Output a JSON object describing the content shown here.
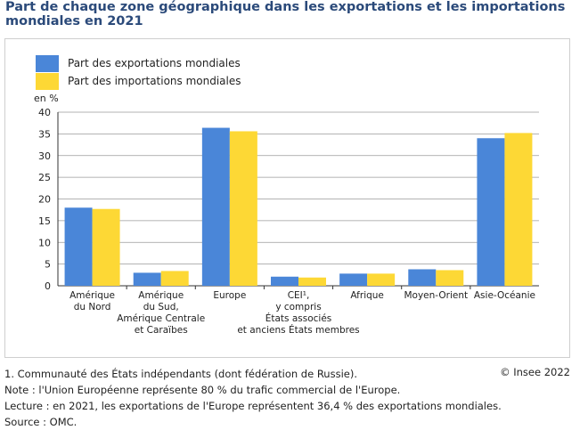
{
  "title": "Part de chaque zone géographique dans les exportations et les importations mondiales en 2021",
  "legend": [
    {
      "label": "Part des exportations mondiales",
      "color": "#4a86d8"
    },
    {
      "label": "Part des importations mondiales",
      "color": "#fdd835"
    }
  ],
  "unit_label": "en %",
  "chart_data": {
    "type": "bar",
    "categories": [
      [
        "Amérique",
        "du Nord"
      ],
      [
        "Amérique",
        "du Sud,",
        "Amérique Centrale",
        "et Caraïbes"
      ],
      [
        "Europe"
      ],
      [
        "CEI¹,",
        "y compris",
        "États associés",
        "et anciens États membres"
      ],
      [
        "Afrique"
      ],
      [
        "Moyen-Orient"
      ],
      [
        "Asie-Océanie"
      ]
    ],
    "series": [
      {
        "name": "Part des exportations mondiales",
        "color": "#4a86d8",
        "values": [
          18.0,
          3.0,
          36.4,
          2.1,
          2.8,
          3.8,
          34.0
        ]
      },
      {
        "name": "Part des importations mondiales",
        "color": "#fdd835",
        "values": [
          17.7,
          3.4,
          35.6,
          1.9,
          2.8,
          3.6,
          35.2
        ]
      }
    ],
    "ylim": [
      0,
      40
    ],
    "yticks": [
      0,
      5,
      10,
      15,
      20,
      25,
      30,
      35,
      40
    ],
    "grid": true
  },
  "footnotes": [
    "1. Communauté des États indépendants (dont fédération de Russie).",
    "Note : l'Union Européenne représente 80 % du trafic commercial de l'Europe.",
    "Lecture : en 2021, les exportations de l'Europe représentent 36,4 % des exportations mondiales.",
    "Source : OMC."
  ],
  "copyright": "© Insee 2022"
}
